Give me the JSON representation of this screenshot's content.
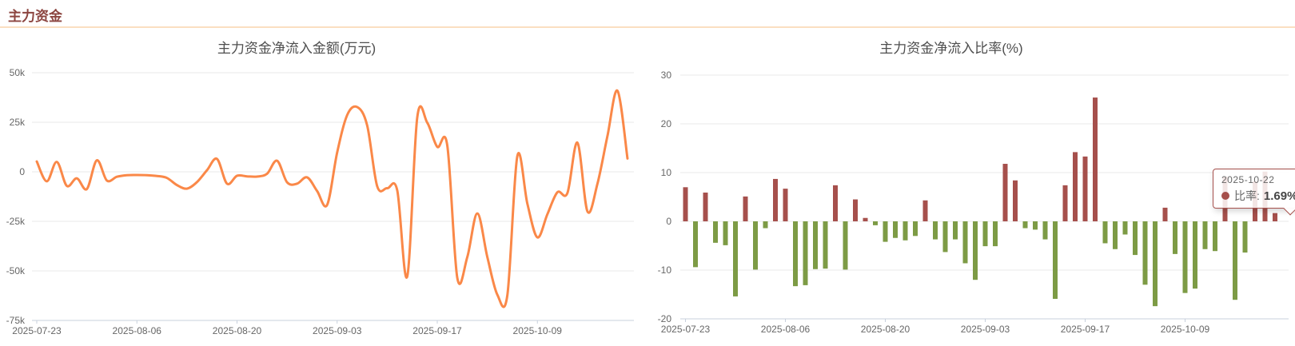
{
  "header": {
    "title": "主力资金"
  },
  "colors": {
    "header_text": "#8c4540",
    "divider": "#fbdfc1",
    "line": "#fa8848",
    "bar_positive": "#a6504c",
    "bar_negative": "#7d9b45",
    "grid": "#e9e9e9",
    "axis_line": "#c8d0dd",
    "axis_label": "#666666",
    "tooltip_border": "#a6504c"
  },
  "chart_data": [
    {
      "type": "line",
      "title": "主力资金净流入金额(万元)",
      "series_name": "净流入金额",
      "unit": "万元",
      "smooth": true,
      "grid": "horizontal",
      "legend_position": "none",
      "ylim": [
        -75000,
        50000
      ],
      "y_ticks": [
        {
          "value": 50000,
          "label": "50k"
        },
        {
          "value": 25000,
          "label": "25k"
        },
        {
          "value": 0,
          "label": "0"
        },
        {
          "value": -25000,
          "label": "-25k"
        },
        {
          "value": -50000,
          "label": "-50k"
        },
        {
          "value": -75000,
          "label": "-75k"
        }
      ],
      "x_tick_indices": [
        0,
        10,
        20,
        30,
        40,
        50
      ],
      "x_tick_labels": [
        "2025-07-23",
        "2025-08-06",
        "2025-08-20",
        "2025-09-03",
        "2025-09-17",
        "2025-10-09"
      ],
      "x": [
        "2025-07-23",
        "2025-07-24",
        "2025-07-25",
        "2025-07-28",
        "2025-07-29",
        "2025-07-30",
        "2025-07-31",
        "2025-08-01",
        "2025-08-04",
        "2025-08-05",
        "2025-08-06",
        "2025-08-07",
        "2025-08-08",
        "2025-08-11",
        "2025-08-12",
        "2025-08-13",
        "2025-08-14",
        "2025-08-15",
        "2025-08-18",
        "2025-08-19",
        "2025-08-20",
        "2025-08-21",
        "2025-08-22",
        "2025-08-25",
        "2025-08-26",
        "2025-08-27",
        "2025-08-28",
        "2025-08-29",
        "2025-09-01",
        "2025-09-02",
        "2025-09-03",
        "2025-09-04",
        "2025-09-05",
        "2025-09-08",
        "2025-09-09",
        "2025-09-10",
        "2025-09-11",
        "2025-09-12",
        "2025-09-15",
        "2025-09-16",
        "2025-09-17",
        "2025-09-18",
        "2025-09-19",
        "2025-09-22",
        "2025-09-23",
        "2025-09-24",
        "2025-09-25",
        "2025-09-26",
        "2025-09-29",
        "2025-09-30",
        "2025-10-09",
        "2025-10-10",
        "2025-10-13",
        "2025-10-14",
        "2025-10-15",
        "2025-10-16",
        "2025-10-17",
        "2025-10-20",
        "2025-10-21",
        "2025-10-22"
      ],
      "values": [
        5200,
        -4800,
        5000,
        -7100,
        -3300,
        -8700,
        5800,
        -4400,
        -2500,
        -1700,
        -1600,
        -1700,
        -2100,
        -3100,
        -6700,
        -8500,
        -5200,
        800,
        6500,
        -6000,
        -2000,
        -2300,
        -2400,
        -1000,
        5600,
        -5300,
        -6000,
        -2800,
        -9700,
        -16700,
        9700,
        28600,
        32700,
        23400,
        -7300,
        -8300,
        -9300,
        -52800,
        27400,
        24800,
        12600,
        13300,
        -53500,
        -43000,
        -21000,
        -43000,
        -62000,
        -62300,
        8000,
        -16100,
        -33100,
        -21400,
        -10300,
        -10700,
        14700,
        -20000,
        -6000,
        18100,
        40900,
        6700
      ]
    },
    {
      "type": "bar",
      "title": "主力资金净流入比率(%)",
      "series_name": "比率",
      "unit": "%",
      "grid": "horizontal",
      "legend_position": "none",
      "ylim": [
        -20,
        30
      ],
      "y_ticks": [
        {
          "value": 30,
          "label": "30"
        },
        {
          "value": 20,
          "label": "20"
        },
        {
          "value": 10,
          "label": "10"
        },
        {
          "value": 0,
          "label": "0"
        },
        {
          "value": -10,
          "label": "-10"
        },
        {
          "value": -20,
          "label": "-20"
        }
      ],
      "x_tick_indices": [
        0,
        10,
        20,
        30,
        40,
        50
      ],
      "x_tick_labels": [
        "2025-07-23",
        "2025-08-06",
        "2025-08-20",
        "2025-09-03",
        "2025-09-17",
        "2025-10-09"
      ],
      "x": [
        "2025-07-23",
        "2025-07-24",
        "2025-07-25",
        "2025-07-28",
        "2025-07-29",
        "2025-07-30",
        "2025-07-31",
        "2025-08-01",
        "2025-08-04",
        "2025-08-05",
        "2025-08-06",
        "2025-08-07",
        "2025-08-08",
        "2025-08-11",
        "2025-08-12",
        "2025-08-13",
        "2025-08-14",
        "2025-08-15",
        "2025-08-18",
        "2025-08-19",
        "2025-08-20",
        "2025-08-21",
        "2025-08-22",
        "2025-08-25",
        "2025-08-26",
        "2025-08-27",
        "2025-08-28",
        "2025-08-29",
        "2025-09-01",
        "2025-09-02",
        "2025-09-03",
        "2025-09-04",
        "2025-09-05",
        "2025-09-08",
        "2025-09-09",
        "2025-09-10",
        "2025-09-11",
        "2025-09-12",
        "2025-09-15",
        "2025-09-16",
        "2025-09-17",
        "2025-09-18",
        "2025-09-19",
        "2025-09-22",
        "2025-09-23",
        "2025-09-24",
        "2025-09-25",
        "2025-09-26",
        "2025-09-29",
        "2025-09-30",
        "2025-10-09",
        "2025-10-10",
        "2025-10-13",
        "2025-10-14",
        "2025-10-15",
        "2025-10-16",
        "2025-10-17",
        "2025-10-20",
        "2025-10-21",
        "2025-10-22"
      ],
      "values": [
        7.0,
        -9.4,
        5.9,
        -4.4,
        -4.9,
        -15.4,
        5.1,
        -9.9,
        -1.4,
        8.7,
        6.7,
        -13.3,
        -13.1,
        -9.8,
        -9.7,
        7.4,
        -9.9,
        4.5,
        0.7,
        -0.8,
        -4.2,
        -3.4,
        -3.9,
        -3.0,
        4.3,
        -3.7,
        -6.3,
        -3.7,
        -8.6,
        -12.0,
        -5.1,
        -5.1,
        11.8,
        8.4,
        -1.4,
        -1.7,
        -3.7,
        -15.9,
        7.4,
        14.2,
        13.3,
        25.4,
        -4.5,
        -5.7,
        -2.7,
        -6.9,
        -13.0,
        -17.4,
        2.8,
        -6.7,
        -14.7,
        -13.8,
        -5.7,
        -6.1,
        9.2,
        -16.1,
        -6.4,
        8.2,
        10.2,
        1.69
      ],
      "tooltip": {
        "date": "2025-10-22",
        "series_label": "比率:",
        "value": "1.69%"
      }
    }
  ]
}
